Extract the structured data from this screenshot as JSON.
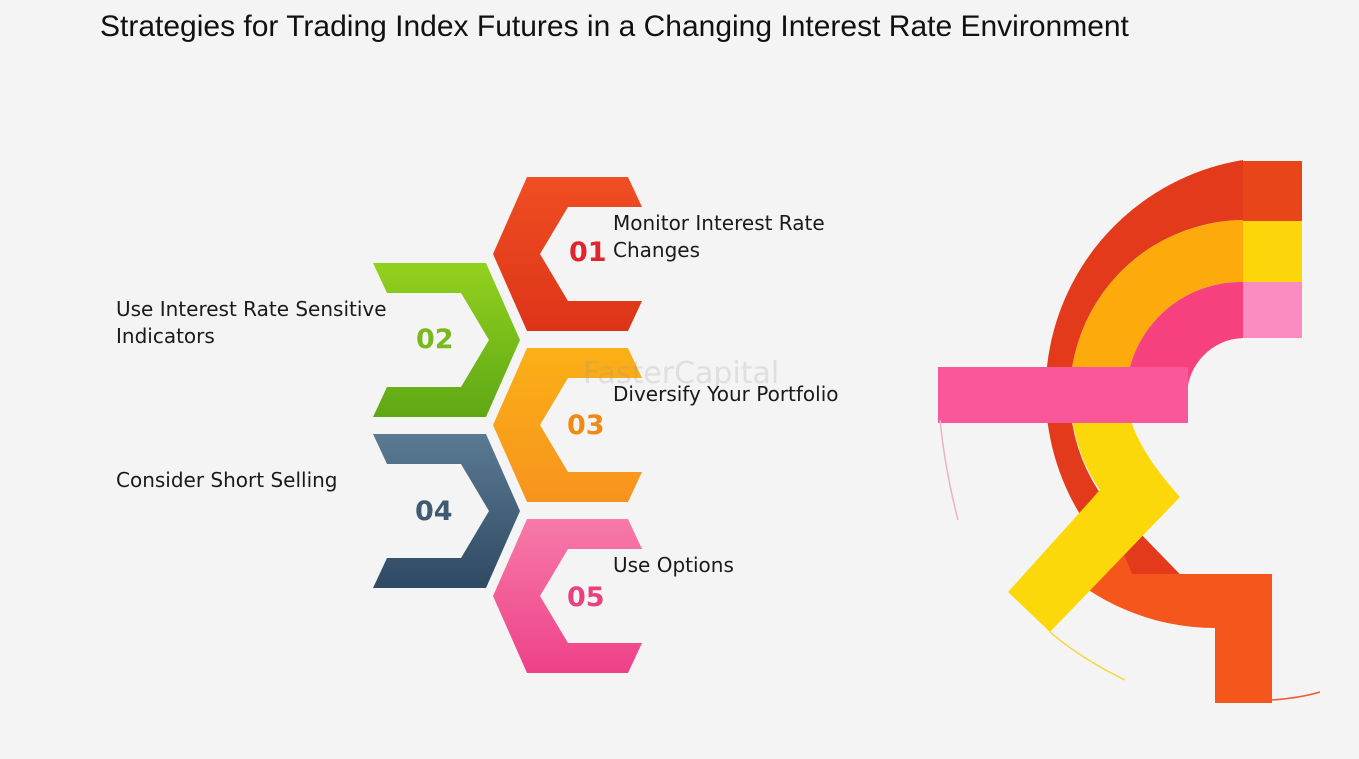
{
  "title": "Strategies for Trading Index Futures in a Changing Interest Rate Environment",
  "watermark": "FasterCapital",
  "steps": [
    {
      "number": "01",
      "lines": [
        "Monitor Interest Rate",
        "Changes"
      ],
      "color": "#e8421f",
      "number_color": "#e0252c"
    },
    {
      "number": "02",
      "lines": [
        "Use Interest Rate Sensitive",
        "Indicators"
      ],
      "color": "#7cc21b",
      "number_color": "#7ab81e"
    },
    {
      "number": "03",
      "lines": [
        "Diversify Your Portfolio"
      ],
      "color": "#f99d1b",
      "number_color": "#f08a12"
    },
    {
      "number": "04",
      "lines": [
        "Consider Short Selling"
      ],
      "color": "#4a6680",
      "number_color": "#3f5a72"
    },
    {
      "number": "05",
      "lines": [
        "Use Options"
      ],
      "color": "#f25792",
      "number_color": "#e94080"
    }
  ],
  "decoration_colors": {
    "outer": "#e8421f",
    "middle": "#fbbf0e",
    "inner": "#f25792"
  }
}
